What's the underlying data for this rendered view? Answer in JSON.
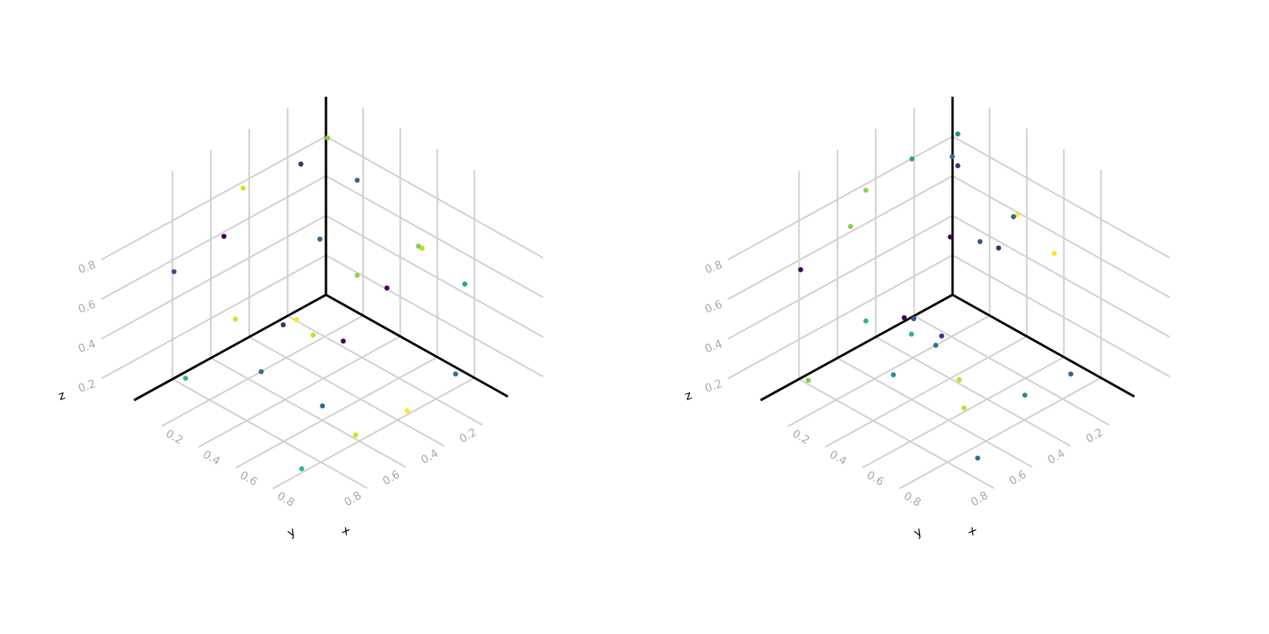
{
  "chart_data": [
    {
      "type": "scatter",
      "axes": {
        "x": {
          "label": "x",
          "ticks": [
            "0.2",
            "0.4",
            "0.6",
            "0.8"
          ]
        },
        "y": {
          "label": "y",
          "ticks": [
            "0.2",
            "0.4",
            "0.6",
            "0.8"
          ]
        },
        "z": {
          "label": "z",
          "ticks": [
            "0.2",
            "0.4",
            "0.6",
            "0.8"
          ]
        }
      },
      "grid": true,
      "colormap": "viridis",
      "points": [
        {
          "x": 0.02,
          "y": 0.15,
          "z": 0.75,
          "color": "#472d7b"
        },
        {
          "x": 0.06,
          "y": 0.05,
          "z": 0.85,
          "color": "#7ad151"
        },
        {
          "x": 0.22,
          "y": 0.05,
          "z": 0.72,
          "color": "#31688e"
        },
        {
          "x": 0.05,
          "y": 0.08,
          "z": 0.35,
          "color": "#31688e"
        },
        {
          "x": 0.22,
          "y": 0.05,
          "z": 0.24,
          "color": "#86d549"
        },
        {
          "x": 0.38,
          "y": 0.05,
          "z": 0.26,
          "color": "#440154"
        },
        {
          "x": 0.55,
          "y": 0.05,
          "z": 0.56,
          "color": "#7ad151"
        },
        {
          "x": 0.57,
          "y": 0.05,
          "z": 0.56,
          "color": "#bddf26"
        },
        {
          "x": 0.8,
          "y": 0.05,
          "z": 0.5,
          "color": "#22a884"
        },
        {
          "x": 0.05,
          "y": 0.48,
          "z": 0.82,
          "color": "#d2e21b"
        },
        {
          "x": 0.05,
          "y": 0.58,
          "z": 0.63,
          "color": "#440154"
        },
        {
          "x": 0.05,
          "y": 0.84,
          "z": 0.59,
          "color": "#3b528b"
        },
        {
          "x": 0.05,
          "y": 0.52,
          "z": 0.18,
          "color": "#d2e21b"
        },
        {
          "x": 0.1,
          "y": 0.25,
          "z": 0.06,
          "color": "#fde725"
        },
        {
          "x": 0.08,
          "y": 0.3,
          "z": 0.05,
          "color": "#472d7b"
        },
        {
          "x": 0.2,
          "y": 0.26,
          "z": 0.04,
          "color": "#bddf26"
        },
        {
          "x": 0.3,
          "y": 0.2,
          "z": 0.03,
          "color": "#440154"
        },
        {
          "x": 0.22,
          "y": 0.55,
          "z": 0.02,
          "color": "#2c728e"
        },
        {
          "x": 0.05,
          "y": 0.78,
          "z": 0.02,
          "color": "#35b779"
        },
        {
          "x": 0.55,
          "y": 0.55,
          "z": 0.02,
          "color": "#31688e"
        },
        {
          "x": 0.8,
          "y": 0.35,
          "z": 0.02,
          "color": "#fde725"
        },
        {
          "x": 0.75,
          "y": 0.05,
          "z": 0.02,
          "color": "#2c728e"
        },
        {
          "x": 0.78,
          "y": 0.6,
          "z": 0.02,
          "color": "#d2e21b"
        },
        {
          "x": 0.8,
          "y": 0.9,
          "z": 0.02,
          "color": "#35b779"
        }
      ]
    },
    {
      "type": "scatter",
      "axes": {
        "x": {
          "label": "x",
          "ticks": [
            "0.2",
            "0.4",
            "0.6",
            "0.8"
          ]
        },
        "y": {
          "label": "y",
          "ticks": [
            "0.2",
            "0.4",
            "0.6",
            "0.8"
          ]
        },
        "z": {
          "label": "z",
          "ticks": [
            "0.2",
            "0.4",
            "0.6",
            "0.8"
          ]
        }
      },
      "grid": true,
      "colormap": "viridis",
      "points": [
        {
          "x": 0.04,
          "y": 0.25,
          "z": 0.84,
          "color": "#22a884"
        },
        {
          "x": 0.08,
          "y": 0.05,
          "z": 0.88,
          "color": "#21918c"
        },
        {
          "x": 0.05,
          "y": 0.05,
          "z": 0.75,
          "color": "#2c728e"
        },
        {
          "x": 0.08,
          "y": 0.05,
          "z": 0.72,
          "color": "#472d7b"
        },
        {
          "x": 0.05,
          "y": 0.06,
          "z": 0.35,
          "color": "#440154"
        },
        {
          "x": 0.4,
          "y": 0.05,
          "z": 0.64,
          "color": "#fde725"
        },
        {
          "x": 0.38,
          "y": 0.05,
          "z": 0.62,
          "color": "#31688e"
        },
        {
          "x": 0.2,
          "y": 0.05,
          "z": 0.4,
          "color": "#3b528b"
        },
        {
          "x": 0.3,
          "y": 0.05,
          "z": 0.42,
          "color": "#472d7b"
        },
        {
          "x": 0.6,
          "y": 0.05,
          "z": 0.55,
          "color": "#fde725"
        },
        {
          "x": 0.05,
          "y": 0.5,
          "z": 0.82,
          "color": "#86d549"
        },
        {
          "x": 0.05,
          "y": 0.58,
          "z": 0.68,
          "color": "#7ad151"
        },
        {
          "x": 0.05,
          "y": 0.84,
          "z": 0.6,
          "color": "#440154"
        },
        {
          "x": 0.05,
          "y": 0.5,
          "z": 0.16,
          "color": "#35b779"
        },
        {
          "x": 0.07,
          "y": 0.27,
          "z": 0.06,
          "color": "#3b528b"
        },
        {
          "x": 0.05,
          "y": 0.3,
          "z": 0.07,
          "color": "#440154"
        },
        {
          "x": 0.12,
          "y": 0.33,
          "z": 0.04,
          "color": "#35b779"
        },
        {
          "x": 0.2,
          "y": 0.25,
          "z": 0.03,
          "color": "#472d7b"
        },
        {
          "x": 0.22,
          "y": 0.3,
          "z": 0.02,
          "color": "#2c728e"
        },
        {
          "x": 0.25,
          "y": 0.55,
          "z": 0.02,
          "color": "#21918c"
        },
        {
          "x": 0.05,
          "y": 0.8,
          "z": 0.02,
          "color": "#7ad151"
        },
        {
          "x": 0.45,
          "y": 0.4,
          "z": 0.02,
          "color": "#bddf26"
        },
        {
          "x": 0.6,
          "y": 0.52,
          "z": 0.02,
          "color": "#bddf26"
        },
        {
          "x": 0.7,
          "y": 0.3,
          "z": 0.02,
          "color": "#21918c"
        },
        {
          "x": 0.72,
          "y": 0.08,
          "z": 0.02,
          "color": "#31688e"
        },
        {
          "x": 0.88,
          "y": 0.72,
          "z": 0.02,
          "color": "#2c728e"
        }
      ]
    }
  ]
}
